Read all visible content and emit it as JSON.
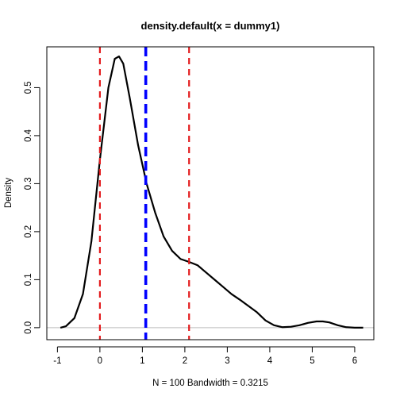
{
  "chart_data": {
    "type": "line",
    "title": "density.default(x = dummy1)",
    "xlabel": "N = 100   Bandwidth = 0.3215",
    "ylabel": "Density",
    "xlim": [
      -1.25,
      6.45
    ],
    "ylim": [
      -0.025,
      0.585
    ],
    "x_ticks": [
      -1,
      0,
      1,
      2,
      3,
      4,
      5,
      6
    ],
    "y_ticks": [
      0.0,
      0.1,
      0.2,
      0.3,
      0.4,
      0.5
    ],
    "x_tick_labels": [
      "-1",
      "0",
      "1",
      "2",
      "3",
      "4",
      "5",
      "6"
    ],
    "y_tick_labels": [
      "0.0",
      "0.1",
      "0.2",
      "0.3",
      "0.4",
      "0.5"
    ],
    "grid": false,
    "series": [
      {
        "color": "#000000",
        "x": [
          -0.93,
          -0.8,
          -0.6,
          -0.4,
          -0.2,
          0.0,
          0.2,
          0.35,
          0.45,
          0.55,
          0.7,
          0.9,
          1.1,
          1.3,
          1.5,
          1.7,
          1.9,
          2.1,
          2.3,
          2.5,
          2.7,
          2.9,
          3.1,
          3.3,
          3.5,
          3.7,
          3.9,
          4.1,
          4.3,
          4.5,
          4.7,
          4.9,
          5.1,
          5.25,
          5.4,
          5.6,
          5.8,
          6.0,
          6.2
        ],
        "y": [
          0.0,
          0.003,
          0.02,
          0.07,
          0.18,
          0.35,
          0.5,
          0.56,
          0.565,
          0.55,
          0.48,
          0.38,
          0.3,
          0.24,
          0.19,
          0.16,
          0.143,
          0.137,
          0.13,
          0.115,
          0.1,
          0.085,
          0.07,
          0.058,
          0.045,
          0.032,
          0.015,
          0.005,
          0.001,
          0.002,
          0.005,
          0.01,
          0.013,
          0.013,
          0.011,
          0.005,
          0.001,
          0.0,
          0.0
        ]
      }
    ],
    "reference_line": {
      "y": 0.0,
      "color": "#bebebe"
    },
    "vlines": [
      {
        "x": 0.0,
        "color": "#e31a1c",
        "style": "dashed"
      },
      {
        "x": 1.08,
        "color": "#0000ff",
        "style": "dashed-thick"
      },
      {
        "x": 2.1,
        "color": "#e31a1c",
        "style": "dashed"
      }
    ]
  }
}
